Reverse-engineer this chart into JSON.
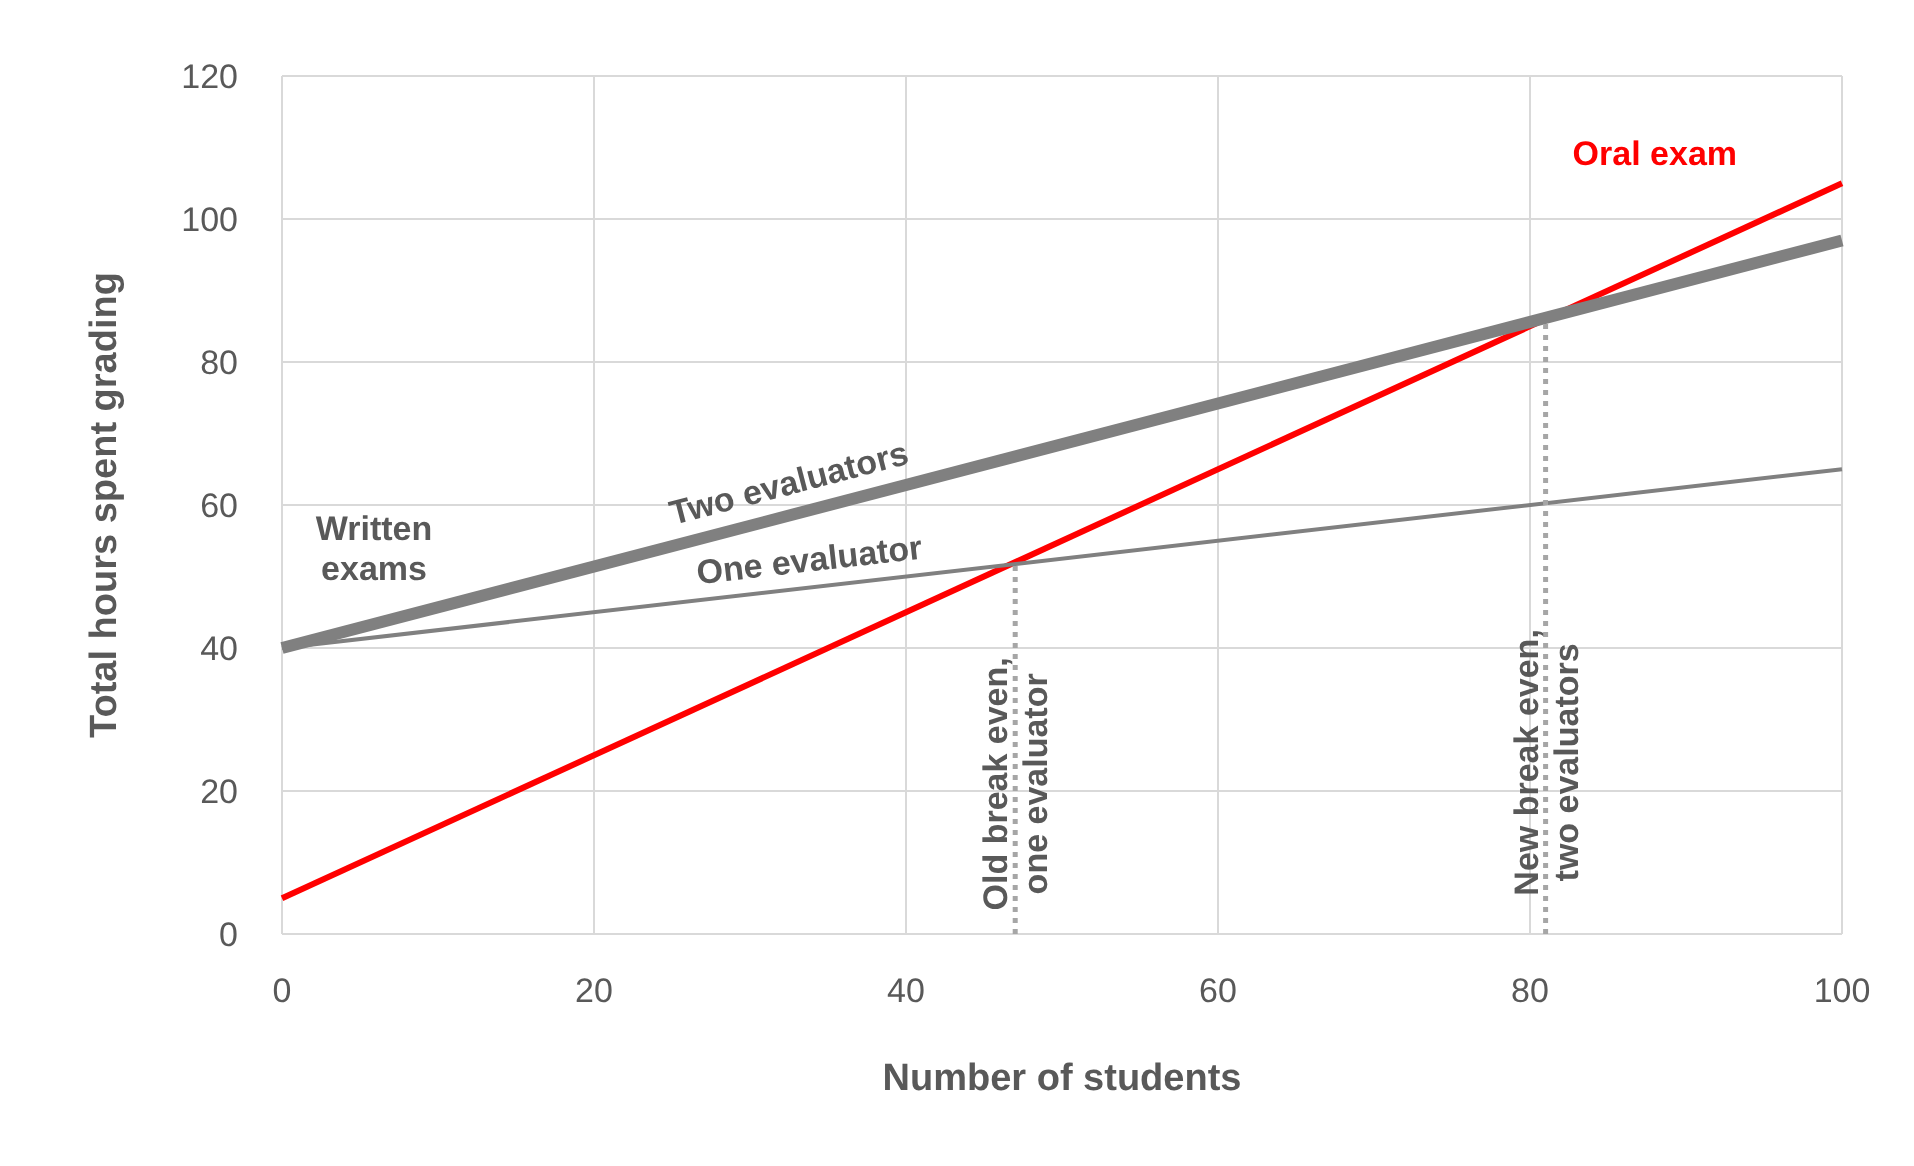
{
  "chart_data": {
    "type": "line",
    "xlabel": "Number of students",
    "ylabel": "Total hours spent grading",
    "xlim": [
      0,
      100
    ],
    "xticks": [
      0,
      20,
      40,
      60,
      80,
      100
    ],
    "ylim": [
      0,
      120
    ],
    "yticks": [
      0,
      20,
      40,
      60,
      80,
      100,
      120
    ],
    "grid": true,
    "marker": "none",
    "series": [
      {
        "name": "Oral exam",
        "color": "#ff0000",
        "x": [
          0,
          100
        ],
        "values": [
          5,
          105
        ]
      },
      {
        "name": "Two evaluators",
        "color": "#808080",
        "x": [
          0,
          100
        ],
        "values": [
          40,
          97
        ]
      },
      {
        "name": "One evaluator",
        "color": "#808080",
        "x": [
          0,
          100
        ],
        "values": [
          40,
          65
        ]
      },
      {
        "color": "#a6a6a6",
        "x": [
          47,
          47
        ],
        "values": [
          0,
          52
        ],
        "line_style": "dotted"
      },
      {
        "color": "#a6a6a6",
        "x": [
          81,
          81
        ],
        "values": [
          0,
          86
        ],
        "line_style": "dotted"
      }
    ],
    "annotations": [
      "Written\nexams",
      {
        "text": "Old break even,\none evaluator",
        "x": 47,
        "y": 21
      },
      {
        "text": "New break even,\ntwo evaluators",
        "x": 81,
        "y": 24
      }
    ]
  }
}
